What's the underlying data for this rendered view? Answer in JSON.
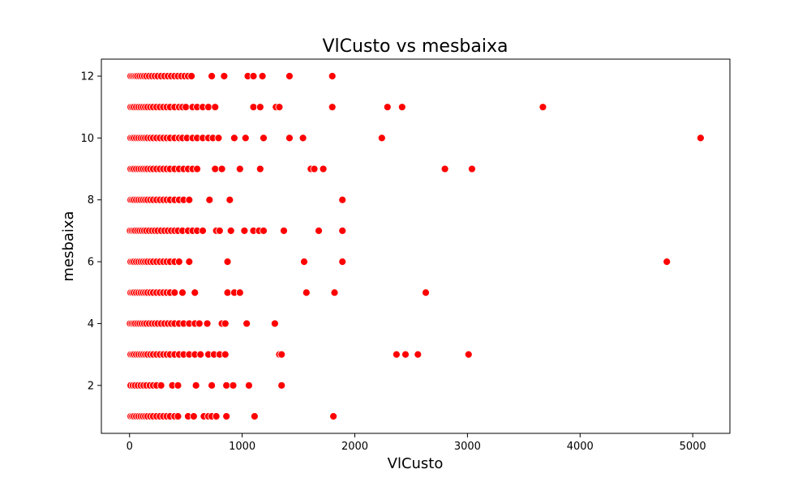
{
  "chart_data": {
    "type": "scatter",
    "title": "VlCusto vs mesbaixa",
    "xlabel": "VlCusto",
    "ylabel": "mesbaixa",
    "xlim": [
      -250,
      5330
    ],
    "ylim": [
      0.45,
      12.55
    ],
    "xticks": [
      0,
      1000,
      2000,
      3000,
      4000,
      5000
    ],
    "yticks": [
      2,
      4,
      6,
      8,
      10,
      12
    ],
    "grid": false,
    "legend": "none",
    "marker_color": "#ff0000",
    "marker_edge": "#ffffff",
    "series": [
      {
        "points": [
          [
            10,
            12
          ],
          [
            25,
            12
          ],
          [
            40,
            12
          ],
          [
            55,
            12
          ],
          [
            70,
            12
          ],
          [
            90,
            12
          ],
          [
            110,
            12
          ],
          [
            130,
            12
          ],
          [
            150,
            12
          ],
          [
            175,
            12
          ],
          [
            200,
            12
          ],
          [
            225,
            12
          ],
          [
            250,
            12
          ],
          [
            280,
            12
          ],
          [
            310,
            12
          ],
          [
            340,
            12
          ],
          [
            370,
            12
          ],
          [
            400,
            12
          ],
          [
            430,
            12
          ],
          [
            460,
            12
          ],
          [
            490,
            12
          ],
          [
            520,
            12
          ],
          [
            550,
            12
          ],
          [
            730,
            12
          ],
          [
            840,
            12
          ],
          [
            1050,
            12
          ],
          [
            1100,
            12
          ],
          [
            1180,
            12
          ],
          [
            1420,
            12
          ],
          [
            1800,
            12
          ],
          [
            10,
            11
          ],
          [
            25,
            11
          ],
          [
            40,
            11
          ],
          [
            60,
            11
          ],
          [
            80,
            11
          ],
          [
            100,
            11
          ],
          [
            120,
            11
          ],
          [
            140,
            11
          ],
          [
            160,
            11
          ],
          [
            185,
            11
          ],
          [
            210,
            11
          ],
          [
            240,
            11
          ],
          [
            270,
            11
          ],
          [
            300,
            11
          ],
          [
            330,
            11
          ],
          [
            360,
            11
          ],
          [
            400,
            11
          ],
          [
            440,
            11
          ],
          [
            470,
            11
          ],
          [
            500,
            11
          ],
          [
            560,
            11
          ],
          [
            600,
            11
          ],
          [
            650,
            11
          ],
          [
            700,
            11
          ],
          [
            760,
            11
          ],
          [
            1100,
            11
          ],
          [
            1160,
            11
          ],
          [
            1300,
            11
          ],
          [
            1330,
            11
          ],
          [
            1800,
            11
          ],
          [
            2290,
            11
          ],
          [
            2420,
            11
          ],
          [
            3670,
            11
          ],
          [
            10,
            10
          ],
          [
            25,
            10
          ],
          [
            40,
            10
          ],
          [
            60,
            10
          ],
          [
            80,
            10
          ],
          [
            100,
            10
          ],
          [
            120,
            10
          ],
          [
            140,
            10
          ],
          [
            160,
            10
          ],
          [
            185,
            10
          ],
          [
            210,
            10
          ],
          [
            240,
            10
          ],
          [
            270,
            10
          ],
          [
            300,
            10
          ],
          [
            330,
            10
          ],
          [
            360,
            10
          ],
          [
            400,
            10
          ],
          [
            440,
            10
          ],
          [
            470,
            10
          ],
          [
            510,
            10
          ],
          [
            560,
            10
          ],
          [
            600,
            10
          ],
          [
            650,
            10
          ],
          [
            700,
            10
          ],
          [
            740,
            10
          ],
          [
            790,
            10
          ],
          [
            930,
            10
          ],
          [
            1030,
            10
          ],
          [
            1190,
            10
          ],
          [
            1420,
            10
          ],
          [
            1540,
            10
          ],
          [
            2240,
            10
          ],
          [
            5070,
            10
          ],
          [
            10,
            9
          ],
          [
            25,
            9
          ],
          [
            40,
            9
          ],
          [
            60,
            9
          ],
          [
            80,
            9
          ],
          [
            100,
            9
          ],
          [
            120,
            9
          ],
          [
            140,
            9
          ],
          [
            160,
            9
          ],
          [
            185,
            9
          ],
          [
            210,
            9
          ],
          [
            240,
            9
          ],
          [
            270,
            9
          ],
          [
            300,
            9
          ],
          [
            330,
            9
          ],
          [
            360,
            9
          ],
          [
            400,
            9
          ],
          [
            440,
            9
          ],
          [
            480,
            9
          ],
          [
            520,
            9
          ],
          [
            560,
            9
          ],
          [
            600,
            9
          ],
          [
            760,
            9
          ],
          [
            820,
            9
          ],
          [
            980,
            9
          ],
          [
            1160,
            9
          ],
          [
            1610,
            9
          ],
          [
            1640,
            9
          ],
          [
            1720,
            9
          ],
          [
            2800,
            9
          ],
          [
            3040,
            9
          ],
          [
            10,
            8
          ],
          [
            25,
            8
          ],
          [
            40,
            8
          ],
          [
            60,
            8
          ],
          [
            80,
            8
          ],
          [
            100,
            8
          ],
          [
            120,
            8
          ],
          [
            140,
            8
          ],
          [
            160,
            8
          ],
          [
            185,
            8
          ],
          [
            210,
            8
          ],
          [
            240,
            8
          ],
          [
            270,
            8
          ],
          [
            300,
            8
          ],
          [
            330,
            8
          ],
          [
            360,
            8
          ],
          [
            400,
            8
          ],
          [
            440,
            8
          ],
          [
            480,
            8
          ],
          [
            530,
            8
          ],
          [
            710,
            8
          ],
          [
            890,
            8
          ],
          [
            1890,
            8
          ],
          [
            5,
            7
          ],
          [
            20,
            7
          ],
          [
            35,
            7
          ],
          [
            50,
            7
          ],
          [
            70,
            7
          ],
          [
            90,
            7
          ],
          [
            110,
            7
          ],
          [
            130,
            7
          ],
          [
            150,
            7
          ],
          [
            175,
            7
          ],
          [
            200,
            7
          ],
          [
            225,
            7
          ],
          [
            250,
            7
          ],
          [
            280,
            7
          ],
          [
            310,
            7
          ],
          [
            340,
            7
          ],
          [
            370,
            7
          ],
          [
            400,
            7
          ],
          [
            430,
            7
          ],
          [
            470,
            7
          ],
          [
            520,
            7
          ],
          [
            560,
            7
          ],
          [
            600,
            7
          ],
          [
            650,
            7
          ],
          [
            770,
            7
          ],
          [
            800,
            7
          ],
          [
            900,
            7
          ],
          [
            1020,
            7
          ],
          [
            1100,
            7
          ],
          [
            1150,
            7
          ],
          [
            1190,
            7
          ],
          [
            1370,
            7
          ],
          [
            1680,
            7
          ],
          [
            1890,
            7
          ],
          [
            10,
            6
          ],
          [
            25,
            6
          ],
          [
            40,
            6
          ],
          [
            60,
            6
          ],
          [
            80,
            6
          ],
          [
            100,
            6
          ],
          [
            120,
            6
          ],
          [
            140,
            6
          ],
          [
            160,
            6
          ],
          [
            185,
            6
          ],
          [
            210,
            6
          ],
          [
            240,
            6
          ],
          [
            270,
            6
          ],
          [
            300,
            6
          ],
          [
            330,
            6
          ],
          [
            360,
            6
          ],
          [
            400,
            6
          ],
          [
            440,
            6
          ],
          [
            530,
            6
          ],
          [
            870,
            6
          ],
          [
            1550,
            6
          ],
          [
            1890,
            6
          ],
          [
            4770,
            6
          ],
          [
            10,
            5
          ],
          [
            25,
            5
          ],
          [
            40,
            5
          ],
          [
            60,
            5
          ],
          [
            80,
            5
          ],
          [
            100,
            5
          ],
          [
            120,
            5
          ],
          [
            140,
            5
          ],
          [
            160,
            5
          ],
          [
            185,
            5
          ],
          [
            210,
            5
          ],
          [
            240,
            5
          ],
          [
            270,
            5
          ],
          [
            300,
            5
          ],
          [
            330,
            5
          ],
          [
            360,
            5
          ],
          [
            400,
            5
          ],
          [
            470,
            5
          ],
          [
            580,
            5
          ],
          [
            870,
            5
          ],
          [
            930,
            5
          ],
          [
            980,
            5
          ],
          [
            1570,
            5
          ],
          [
            1820,
            5
          ],
          [
            2630,
            5
          ],
          [
            5,
            4
          ],
          [
            20,
            4
          ],
          [
            35,
            4
          ],
          [
            50,
            4
          ],
          [
            70,
            4
          ],
          [
            90,
            4
          ],
          [
            110,
            4
          ],
          [
            130,
            4
          ],
          [
            150,
            4
          ],
          [
            175,
            4
          ],
          [
            200,
            4
          ],
          [
            225,
            4
          ],
          [
            250,
            4
          ],
          [
            280,
            4
          ],
          [
            310,
            4
          ],
          [
            340,
            4
          ],
          [
            370,
            4
          ],
          [
            400,
            4
          ],
          [
            440,
            4
          ],
          [
            480,
            4
          ],
          [
            530,
            4
          ],
          [
            580,
            4
          ],
          [
            620,
            4
          ],
          [
            690,
            4
          ],
          [
            820,
            4
          ],
          [
            850,
            4
          ],
          [
            1040,
            4
          ],
          [
            1290,
            4
          ],
          [
            10,
            3
          ],
          [
            25,
            3
          ],
          [
            40,
            3
          ],
          [
            60,
            3
          ],
          [
            80,
            3
          ],
          [
            100,
            3
          ],
          [
            120,
            3
          ],
          [
            140,
            3
          ],
          [
            160,
            3
          ],
          [
            185,
            3
          ],
          [
            210,
            3
          ],
          [
            240,
            3
          ],
          [
            270,
            3
          ],
          [
            300,
            3
          ],
          [
            330,
            3
          ],
          [
            360,
            3
          ],
          [
            400,
            3
          ],
          [
            440,
            3
          ],
          [
            480,
            3
          ],
          [
            530,
            3
          ],
          [
            580,
            3
          ],
          [
            630,
            3
          ],
          [
            700,
            3
          ],
          [
            750,
            3
          ],
          [
            800,
            3
          ],
          [
            850,
            3
          ],
          [
            1330,
            3
          ],
          [
            1350,
            3
          ],
          [
            2370,
            3
          ],
          [
            2450,
            3
          ],
          [
            2560,
            3
          ],
          [
            3010,
            3
          ],
          [
            10,
            2
          ],
          [
            30,
            2
          ],
          [
            50,
            2
          ],
          [
            75,
            2
          ],
          [
            100,
            2
          ],
          [
            125,
            2
          ],
          [
            150,
            2
          ],
          [
            180,
            2
          ],
          [
            210,
            2
          ],
          [
            240,
            2
          ],
          [
            280,
            2
          ],
          [
            380,
            2
          ],
          [
            430,
            2
          ],
          [
            590,
            2
          ],
          [
            730,
            2
          ],
          [
            860,
            2
          ],
          [
            920,
            2
          ],
          [
            1060,
            2
          ],
          [
            1350,
            2
          ],
          [
            10,
            1
          ],
          [
            25,
            1
          ],
          [
            40,
            1
          ],
          [
            60,
            1
          ],
          [
            80,
            1
          ],
          [
            100,
            1
          ],
          [
            120,
            1
          ],
          [
            140,
            1
          ],
          [
            160,
            1
          ],
          [
            185,
            1
          ],
          [
            210,
            1
          ],
          [
            240,
            1
          ],
          [
            270,
            1
          ],
          [
            300,
            1
          ],
          [
            330,
            1
          ],
          [
            360,
            1
          ],
          [
            400,
            1
          ],
          [
            430,
            1
          ],
          [
            520,
            1
          ],
          [
            570,
            1
          ],
          [
            660,
            1
          ],
          [
            700,
            1
          ],
          [
            730,
            1
          ],
          [
            770,
            1
          ],
          [
            860,
            1
          ],
          [
            1110,
            1
          ],
          [
            1810,
            1
          ]
        ]
      }
    ]
  }
}
